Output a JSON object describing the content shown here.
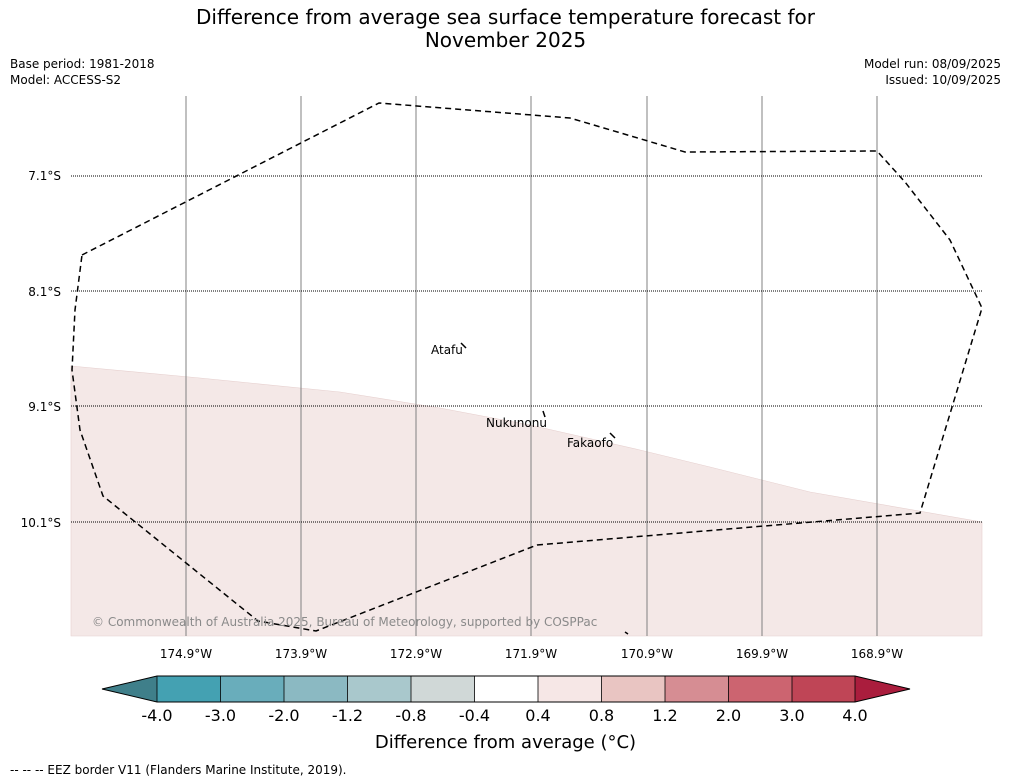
{
  "header": {
    "title_line1": "Difference from average sea surface temperature forecast for",
    "title_line2": "November 2025",
    "base_period": "Base period: 1981-2018",
    "model": "Model: ACCESS-S2",
    "model_run": "Model run: 08/09/2025",
    "issued": "Issued: 10/09/2025"
  },
  "map": {
    "lat_labels": [
      "7.1°S",
      "8.1°S",
      "9.1°S",
      "10.1°S"
    ],
    "lon_labels": [
      "174.9°W",
      "173.9°W",
      "172.9°W",
      "171.9°W",
      "170.9°W",
      "169.9°W",
      "168.9°W"
    ],
    "places": [
      "Atafu",
      "Nukunonu",
      "Fakaofo"
    ],
    "copyright": "© Commonwealth of Australia 2025, Bureau of Meteorology, supported by COSPPac",
    "shaded_anomaly_color": "#f4e8e7"
  },
  "colorbar": {
    "title": "Difference from average (°C)",
    "tick_labels": [
      "-4.0",
      "-3.0",
      "-2.0",
      "-1.2",
      "-0.8",
      "-0.4",
      "0.4",
      "0.8",
      "1.2",
      "2.0",
      "3.0",
      "4.0"
    ],
    "colors": [
      "#3f7f8a",
      "#44a1b2",
      "#69adbb",
      "#8bb9c2",
      "#a9c8cc",
      "#d0d8d7",
      "#ffffff",
      "#f6e7e6",
      "#e9c5c2",
      "#d68d93",
      "#cc6470",
      "#bf4556",
      "#aa1d3d"
    ]
  },
  "footer": {
    "legend": "--  --  -- EEZ border V11 (Flanders Marine Institute, 2019)."
  }
}
